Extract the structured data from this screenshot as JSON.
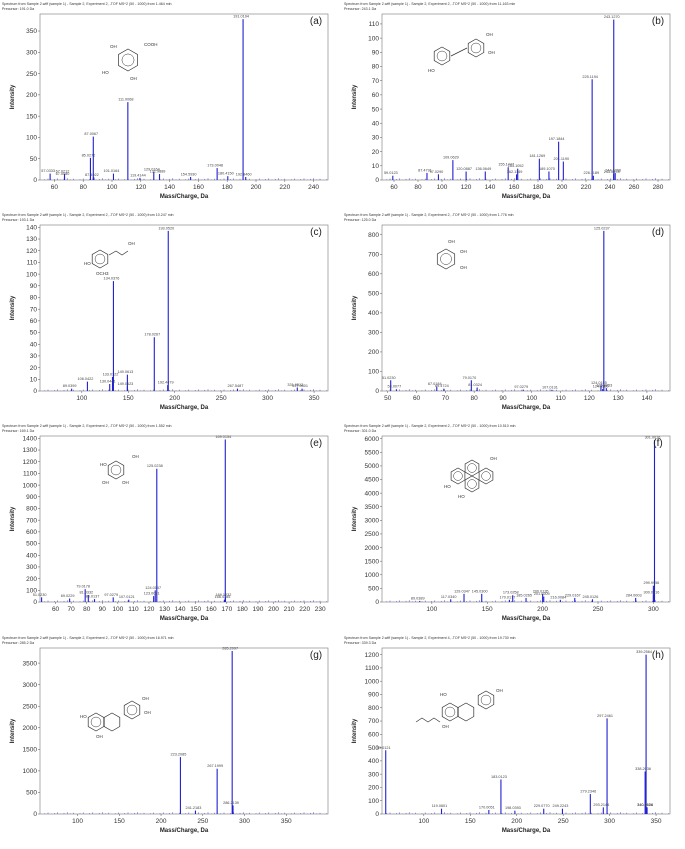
{
  "chart_data": [
    {
      "type": "bar",
      "header_line1": "Spectrum from Sample 2.wiff (sample 1) - Sample 2, Experiment 2, -TOF MS^2 (50 - 1000) from 1.464 min",
      "header_line2": "Precursor: 191.0 Da",
      "panel_label": "(a)",
      "xlabel": "Mass/Charge, Da",
      "ylabel": "Intensity",
      "xlim": [
        50,
        250
      ],
      "ylim": [
        0,
        390
      ],
      "xticks": [
        60,
        80,
        100,
        120,
        140,
        160,
        180,
        200,
        220,
        240
      ],
      "yticks": [
        0,
        50,
        100,
        150,
        200,
        250,
        300,
        350
      ],
      "peaks": [
        {
          "mz": 57.0333,
          "intensity": 15,
          "label": "57.0333"
        },
        {
          "mz": 67.0212,
          "intensity": 14,
          "label": "67.0212"
        },
        {
          "mz": 67.008,
          "intensity": 8,
          "label": "67.0080"
        },
        {
          "mz": 85.0272,
          "intensity": 52,
          "label": "85.0272"
        },
        {
          "mz": 87.0067,
          "intensity": 102,
          "label": "87.0067"
        },
        {
          "mz": 87.4022,
          "intensity": 6,
          "label": "87.4022"
        },
        {
          "mz": 101.0164,
          "intensity": 15,
          "label": "101.0164"
        },
        {
          "mz": 111.0068,
          "intensity": 183,
          "label": "111.0068"
        },
        {
          "mz": 119.4144,
          "intensity": 5,
          "label": "119.4144"
        },
        {
          "mz": 129.0164,
          "intensity": 19,
          "label": "129.0164"
        },
        {
          "mz": 132.9889,
          "intensity": 14,
          "label": "132.9889"
        },
        {
          "mz": 154.593,
          "intensity": 7,
          "label": "154.5930"
        },
        {
          "mz": 173.0048,
          "intensity": 28,
          "label": "173.0048"
        },
        {
          "mz": 180.415,
          "intensity": 9,
          "label": "180.4150"
        },
        {
          "mz": 191.0194,
          "intensity": 378,
          "label": "191.0194"
        },
        {
          "mz": 192.846,
          "intensity": 7,
          "label": "192.8460"
        }
      ]
    },
    {
      "type": "bar",
      "header_line1": "Spectrum from Sample 2.wiff (sample 1) - Sample 2, Experiment 2, -TOF MS^2 (50 - 1000) from 11.163 min",
      "header_line2": "Precursor: 243.1 Da",
      "panel_label": "(b)",
      "xlabel": "Mass/Charge, Da",
      "ylabel": "Intensity",
      "xlim": [
        50,
        290
      ],
      "ylim": [
        0,
        117
      ],
      "xticks": [
        60,
        80,
        100,
        120,
        140,
        160,
        180,
        200,
        220,
        240,
        260,
        280
      ],
      "yticks": [
        0,
        10,
        20,
        30,
        40,
        50,
        60,
        70,
        80,
        90,
        100,
        110
      ],
      "peaks": [
        {
          "mz": 59.0123,
          "intensity": 3,
          "label": "59.0123"
        },
        {
          "mz": 87.4791,
          "intensity": 5,
          "label": "87.4791"
        },
        {
          "mz": 97.029,
          "intensity": 4,
          "label": "97.0290"
        },
        {
          "mz": 109.0629,
          "intensity": 14,
          "label": "109.0629"
        },
        {
          "mz": 120.0887,
          "intensity": 6,
          "label": "120.0887"
        },
        {
          "mz": 136.0649,
          "intensity": 6,
          "label": "136.0649"
        },
        {
          "mz": 155.1447,
          "intensity": 9,
          "label": "155.1447"
        },
        {
          "mz": 163.1052,
          "intensity": 8,
          "label": "163.1052"
        },
        {
          "mz": 162.1149,
          "intensity": 4,
          "label": "162.1149"
        },
        {
          "mz": 181.1269,
          "intensity": 15,
          "label": "181.1269"
        },
        {
          "mz": 189.107,
          "intensity": 6,
          "label": "189.1070"
        },
        {
          "mz": 201.119,
          "intensity": 13,
          "label": "201.1190"
        },
        {
          "mz": 197.1844,
          "intensity": 27,
          "label": "197.1844"
        },
        {
          "mz": 225.1194,
          "intensity": 71,
          "label": "225.1194"
        },
        {
          "mz": 226.1189,
          "intensity": 3,
          "label": "226.1189"
        },
        {
          "mz": 243.127,
          "intensity": 113,
          "label": "243.1270"
        },
        {
          "mz": 244.3266,
          "intensity": 5,
          "label": "244.3266"
        },
        {
          "mz": 243.0378,
          "intensity": 4,
          "label": "243.0378"
        }
      ]
    },
    {
      "type": "bar",
      "header_line1": "Spectrum from Sample 2.wiff (sample 1) - Sample 2, Experiment 2, -TOF MS^2 (50 - 1000) from 10.247 min",
      "header_line2": "Precursor: 193.1 Da",
      "panel_label": "(c)",
      "xlabel": "Mass/Charge, Da",
      "ylabel": "Intensity",
      "xlim": [
        55,
        365
      ],
      "ylim": [
        0,
        142
      ],
      "xticks": [
        100,
        150,
        200,
        250,
        300,
        350
      ],
      "yticks": [
        0,
        10,
        20,
        30,
        40,
        50,
        60,
        70,
        80,
        90,
        100,
        110,
        120,
        130,
        140
      ],
      "peaks": [
        {
          "mz": 89.0399,
          "intensity": 2,
          "label": "89.0399"
        },
        {
          "mz": 106.0422,
          "intensity": 8,
          "label": "106.0422"
        },
        {
          "mz": 133.0322,
          "intensity": 12,
          "label": "133.0322"
        },
        {
          "mz": 130.0441,
          "intensity": 6,
          "label": "130.0441"
        },
        {
          "mz": 134.0376,
          "intensity": 94,
          "label": "134.0376"
        },
        {
          "mz": 149.0613,
          "intensity": 14,
          "label": "149.0613"
        },
        {
          "mz": 149.0623,
          "intensity": 4,
          "label": "149.0623"
        },
        {
          "mz": 178.0267,
          "intensity": 46,
          "label": "178.0267"
        },
        {
          "mz": 193.052,
          "intensity": 137,
          "label": "193.0520"
        },
        {
          "mz": 192.4479,
          "intensity": 5,
          "label": "192.4479"
        },
        {
          "mz": 267.5487,
          "intensity": 2,
          "label": "267.5487"
        },
        {
          "mz": 331.9512,
          "intensity": 3,
          "label": "331.9512"
        },
        {
          "mz": 337.0801,
          "intensity": 2,
          "label": "337.0801"
        }
      ]
    },
    {
      "type": "bar",
      "header_line1": "Spectrum from Sample 2.wiff (sample 1) - Sample 2, Experiment 2, -TOF MS^2 (50 - 1000) from 1.776 min",
      "header_line2": "Precursor: 125.0 Da",
      "panel_label": "(d)",
      "xlabel": "Mass/Charge, Da",
      "ylabel": "Intensity",
      "xlim": [
        48,
        148
      ],
      "ylim": [
        0,
        850
      ],
      "xticks": [
        50,
        60,
        70,
        80,
        90,
        100,
        110,
        120,
        130,
        140
      ],
      "yticks": [
        0,
        100,
        200,
        300,
        400,
        500,
        600,
        700,
        800
      ],
      "peaks": [
        {
          "mz": 51.023,
          "intensity": 55,
          "label": "51.0230"
        },
        {
          "mz": 53.0077,
          "intensity": 9,
          "label": "53.0077"
        },
        {
          "mz": 67.0184,
          "intensity": 22,
          "label": "67.0184"
        },
        {
          "mz": 69.4724,
          "intensity": 12,
          "label": "69.4724"
        },
        {
          "mz": 79.017,
          "intensity": 55,
          "label": "79.0170"
        },
        {
          "mz": 81.0324,
          "intensity": 18,
          "label": "81.0324"
        },
        {
          "mz": 97.0279,
          "intensity": 7,
          "label": "97.0279"
        },
        {
          "mz": 107.0131,
          "intensity": 6,
          "label": "107.0131"
        },
        {
          "mz": 124.0155,
          "intensity": 28,
          "label": "124.0155"
        },
        {
          "mz": 124.628,
          "intensity": 10,
          "label": "124.6280"
        },
        {
          "mz": 125.0237,
          "intensity": 820,
          "label": "125.0237"
        },
        {
          "mz": 125.8853,
          "intensity": 15,
          "label": "125.8853"
        }
      ]
    },
    {
      "type": "bar",
      "header_line1": "Spectrum from Sample 2.wiff (sample 1) - Sample 2, Experiment 2, -TOF MS^2 (50 - 1000) from 1.552 min",
      "header_line2": "Precursor: 169.1 Da",
      "panel_label": "(e)",
      "xlabel": "Mass/Charge, Da",
      "ylabel": "Intensity",
      "xlim": [
        50,
        235
      ],
      "ylim": [
        0,
        1420
      ],
      "xticks": [
        60,
        70,
        80,
        90,
        100,
        110,
        120,
        130,
        140,
        150,
        160,
        170,
        180,
        190,
        200,
        210,
        220,
        230
      ],
      "yticks": [
        0,
        100,
        200,
        300,
        400,
        500,
        600,
        700,
        800,
        900,
        1000,
        1100,
        1200,
        1300,
        1400
      ],
      "peaks": [
        {
          "mz": 51.023,
          "intensity": 40,
          "label": "51.0230"
        },
        {
          "mz": 69.0229,
          "intensity": 30,
          "label": "69.0229"
        },
        {
          "mz": 79.0178,
          "intensity": 110,
          "label": "79.0178"
        },
        {
          "mz": 81.0332,
          "intensity": 60,
          "label": "81.0332"
        },
        {
          "mz": 85.0137,
          "intensity": 25,
          "label": "85.0137"
        },
        {
          "mz": 97.0279,
          "intensity": 40,
          "label": "97.0279"
        },
        {
          "mz": 107.0121,
          "intensity": 20,
          "label": "107.0121"
        },
        {
          "mz": 124.0157,
          "intensity": 100,
          "label": "124.0157"
        },
        {
          "mz": 125.0238,
          "intensity": 1140,
          "label": "125.0238"
        },
        {
          "mz": 123.0071,
          "intensity": 50,
          "label": "123.0071"
        },
        {
          "mz": 168.4785,
          "intensity": 20,
          "label": "168.4785"
        },
        {
          "mz": 169.0154,
          "intensity": 1390,
          "label": "169.0154"
        },
        {
          "mz": 169.1232,
          "intensity": 40,
          "label": "169.1232"
        }
      ]
    },
    {
      "type": "bar",
      "header_line1": "Spectrum from Sample 2.wiff (sample 1) - Sample 2, Experiment 2, -TOF MS^2 (50 - 1000) from 10.510 min",
      "header_line2": "Precursor: 301.0 Da",
      "panel_label": "(f)",
      "xlabel": "Mass/Charge, Da",
      "ylabel": "Intensity",
      "xlim": [
        55,
        315
      ],
      "ylim": [
        0,
        6100
      ],
      "xticks": [
        100,
        150,
        200,
        250,
        300
      ],
      "yticks": [
        0,
        500,
        1000,
        1500,
        2000,
        2500,
        3000,
        3500,
        4000,
        4500,
        5000,
        5500,
        6000
      ],
      "peaks": [
        {
          "mz": 89.0389,
          "intensity": 40,
          "label": "89.0389"
        },
        {
          "mz": 117.034,
          "intensity": 100,
          "label": "117.0340"
        },
        {
          "mz": 129.0347,
          "intensity": 300,
          "label": "129.0347"
        },
        {
          "mz": 145.03,
          "intensity": 300,
          "label": "145.0300"
        },
        {
          "mz": 173.0258,
          "intensity": 250,
          "label": "173.0258"
        },
        {
          "mz": 170.0177,
          "intensity": 80,
          "label": "170.0177"
        },
        {
          "mz": 185.0265,
          "intensity": 150,
          "label": "185.0265"
        },
        {
          "mz": 200.0135,
          "intensity": 300,
          "label": "200.0135"
        },
        {
          "mz": 201.0209,
          "intensity": 200,
          "label": "201.0209"
        },
        {
          "mz": 216.0084,
          "intensity": 80,
          "label": "216.0084"
        },
        {
          "mz": 229.0167,
          "intensity": 150,
          "label": "229.0167"
        },
        {
          "mz": 245.0126,
          "intensity": 100,
          "label": "245.0126"
        },
        {
          "mz": 284.0003,
          "intensity": 150,
          "label": "284.0003"
        },
        {
          "mz": 301.0016,
          "intensity": 5950,
          "label": "301.0016"
        },
        {
          "mz": 299.9956,
          "intensity": 600,
          "label": "299.9956"
        },
        {
          "mz": 300.0416,
          "intensity": 250,
          "label": "300.0416"
        }
      ]
    },
    {
      "type": "bar",
      "header_line1": "Spectrum from Sample 2.wiff (sample 1) - Sample 2, Experiment 2, -TOF MS^2 (50 - 1000) from 16.971 min",
      "header_line2": "Precursor: 285.2 Da",
      "panel_label": "(g)",
      "xlabel": "Mass/Charge, Da",
      "ylabel": "Intensity",
      "xlim": [
        55,
        400
      ],
      "ylim": [
        0,
        3850
      ],
      "xticks": [
        100,
        150,
        200,
        250,
        300,
        350
      ],
      "yticks": [
        0,
        500,
        1000,
        1500,
        2000,
        2500,
        3000,
        3500
      ],
      "peaks": [
        {
          "mz": 223.2085,
          "intensity": 1320,
          "label": "223.2085"
        },
        {
          "mz": 241.2183,
          "intensity": 80,
          "label": "241.2183"
        },
        {
          "mz": 267.1999,
          "intensity": 1050,
          "label": "267.1999"
        },
        {
          "mz": 285.2097,
          "intensity": 3780,
          "label": "285.2097"
        },
        {
          "mz": 286.2139,
          "intensity": 200,
          "label": "286.2139"
        }
      ]
    },
    {
      "type": "bar",
      "header_line1": "Spectrum from Sample 2.wiff (sample 1) - Sample 2, Experiment 4, -TOF MS^2 (50 - 1000) from 19.730 min",
      "header_line2": "Precursor: 339.3 Da",
      "panel_label": "(h)",
      "xlabel": "Mass/Charge, Da",
      "ylabel": "Intensity",
      "xlim": [
        55,
        365
      ],
      "ylim": [
        0,
        1250
      ],
      "xticks": [
        100,
        150,
        200,
        250,
        300,
        350
      ],
      "yticks": [
        0,
        100,
        200,
        300,
        400,
        500,
        600,
        700,
        800,
        900,
        1000,
        1100,
        1200
      ],
      "peaks": [
        {
          "mz": 59.0121,
          "intensity": 480,
          "label": "59.0121"
        },
        {
          "mz": 119.0601,
          "intensity": 40,
          "label": "119.0601"
        },
        {
          "mz": 170.0051,
          "intensity": 30,
          "label": "170.0051"
        },
        {
          "mz": 183.0123,
          "intensity": 260,
          "label": "183.0123"
        },
        {
          "mz": 198.0393,
          "intensity": 25,
          "label": "198.0393"
        },
        {
          "mz": 229.077,
          "intensity": 40,
          "label": "229.0770"
        },
        {
          "mz": 249.2243,
          "intensity": 40,
          "label": "249.2243"
        },
        {
          "mz": 279.2346,
          "intensity": 150,
          "label": "279.2346"
        },
        {
          "mz": 297.2461,
          "intensity": 720,
          "label": "297.2461"
        },
        {
          "mz": 293.2144,
          "intensity": 50,
          "label": "293.2144"
        },
        {
          "mz": 339.2564,
          "intensity": 1200,
          "label": "339.2564"
        },
        {
          "mz": 338.2036,
          "intensity": 320,
          "label": "338.2036"
        },
        {
          "mz": 340.2654,
          "intensity": 50,
          "label": "340.2654"
        },
        {
          "mz": 340.2628,
          "intensity": 50,
          "label": "340.2628"
        }
      ]
    }
  ]
}
